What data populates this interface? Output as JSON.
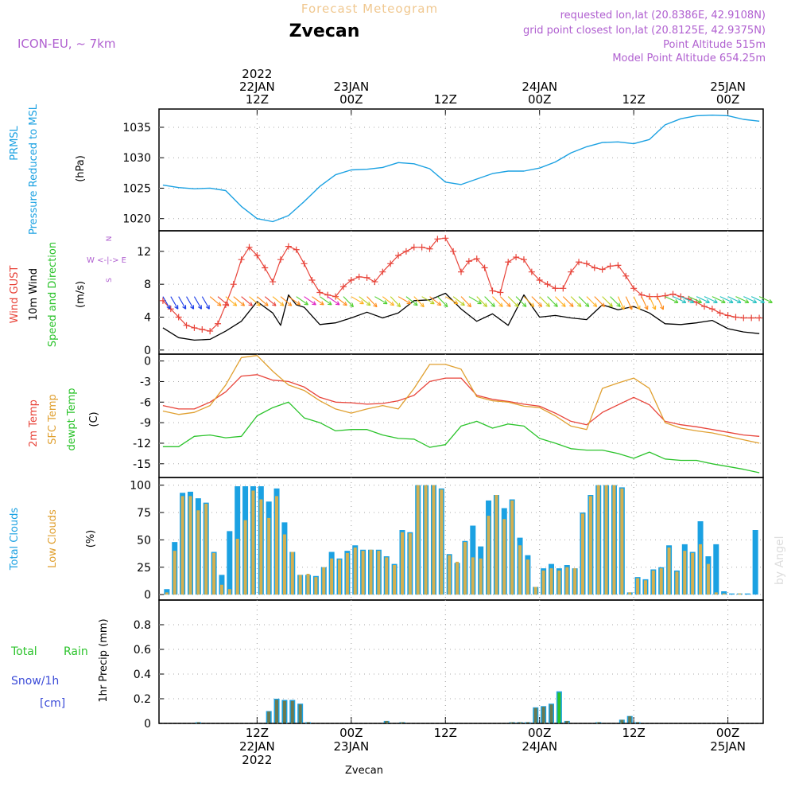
{
  "header": {
    "forecast_title": "Forecast Meteogram",
    "location": "Zvecan",
    "model": "ICON-EU, ~ 7km",
    "requested": "requested lon,lat (20.8386E, 42.9108N)",
    "gridpoint": "grid point closest lon,lat (20.8125E, 42.9375N)",
    "point_alt": "Point Altitude 515m",
    "model_alt": "Model Point Altitude 654.25m",
    "footer": "Zvecan",
    "watermark": "by Angel"
  },
  "colors": {
    "pressure": "#1ba1e2",
    "gust": "#e8443a",
    "wind": "#000000",
    "temp2m": "#e8443a",
    "sfc": "#e0a030",
    "dew": "#2bc32b",
    "total_cloud": "#1ba1e2",
    "low_cloud": "#d4b050",
    "rain": "#2bc32b",
    "snow": "#3b4bd8",
    "purple": "#b060d0"
  },
  "time_axis": {
    "top_labels": [
      {
        "hour": 12,
        "lines": [
          "2022",
          "22JAN",
          "12Z"
        ]
      },
      {
        "hour": 24,
        "lines": [
          "23JAN",
          "00Z"
        ]
      },
      {
        "hour": 36,
        "lines": [
          "12Z"
        ]
      },
      {
        "hour": 48,
        "lines": [
          "24JAN",
          "00Z"
        ]
      },
      {
        "hour": 60,
        "lines": [
          "12Z"
        ]
      },
      {
        "hour": 72,
        "lines": [
          "25JAN",
          "00Z"
        ]
      }
    ],
    "bottom_labels": [
      {
        "hour": 12,
        "lines": [
          "12Z",
          "22JAN",
          "2022"
        ]
      },
      {
        "hour": 24,
        "lines": [
          "00Z",
          "23JAN"
        ]
      },
      {
        "hour": 36,
        "lines": [
          "12Z"
        ]
      },
      {
        "hour": 48,
        "lines": [
          "00Z",
          "24JAN"
        ]
      },
      {
        "hour": 60,
        "lines": [
          "12Z"
        ]
      },
      {
        "hour": 72,
        "lines": [
          "00Z",
          "25JAN"
        ]
      }
    ]
  },
  "panels": {
    "pressure": {
      "labels": [
        "PRMSL",
        "Pressure Reduced to MSL"
      ],
      "unit": "(hPa)"
    },
    "wind": {
      "labels": [
        "Wind GUST",
        "10m Wind",
        "Speed and Direction"
      ],
      "unit": "(m/s)",
      "compass": [
        "N",
        "W <-|-> E",
        "S"
      ]
    },
    "temp": {
      "labels": [
        "2m Temp",
        "SFC Temp",
        "dewpt Temp"
      ],
      "unit": "(C)"
    },
    "clouds": {
      "labels": [
        "Total Clouds",
        "Low Clouds"
      ],
      "unit": "(%)"
    },
    "precip": {
      "labels": [
        "Total",
        "Rain",
        "Snow/1h",
        "[cm]"
      ],
      "unit": "1hr Precip (mm)"
    }
  },
  "chart_data": [
    {
      "type": "line",
      "panel": "pressure",
      "ylim": [
        1018,
        1038
      ],
      "yticks": [
        1020,
        1025,
        1030,
        1035
      ],
      "series": [
        {
          "name": "PRMSL",
          "x": [
            0,
            2,
            4,
            6,
            8,
            10,
            12,
            14,
            16,
            18,
            20,
            22,
            24,
            26,
            28,
            30,
            32,
            34,
            36,
            38,
            40,
            42,
            44,
            46,
            48,
            50,
            52,
            54,
            56,
            58,
            60,
            62,
            64,
            66,
            68,
            70,
            72,
            74,
            76
          ],
          "values": [
            1025.5,
            1025.1,
            1024.9,
            1025.0,
            1024.6,
            1022.0,
            1020.0,
            1019.5,
            1020.5,
            1022.8,
            1025.3,
            1027.2,
            1028.0,
            1028.1,
            1028.4,
            1029.2,
            1029.0,
            1028.2,
            1026.0,
            1025.6,
            1026.5,
            1027.4,
            1027.8,
            1027.8,
            1028.3,
            1029.3,
            1030.8,
            1031.8,
            1032.5,
            1032.6,
            1032.3,
            1033.0,
            1035.4,
            1036.4,
            1036.9,
            1037.0,
            1036.9,
            1036.3,
            1036.0
          ]
        }
      ]
    },
    {
      "type": "line",
      "panel": "wind",
      "ylim": [
        -0.5,
        14.5
      ],
      "yticks": [
        0,
        4,
        8,
        12
      ],
      "series": [
        {
          "name": "Wind GUST",
          "x": [
            0,
            1,
            2,
            3,
            4,
            5,
            6,
            7,
            8,
            9,
            10,
            11,
            12,
            13,
            14,
            15,
            16,
            17,
            18,
            19,
            20,
            21,
            22,
            23,
            24,
            25,
            26,
            27,
            28,
            29,
            30,
            31,
            32,
            33,
            34,
            35,
            36,
            37,
            38,
            39,
            40,
            41,
            42,
            43,
            44,
            45,
            46,
            47,
            48,
            49,
            50,
            51,
            52,
            53,
            54,
            55,
            56,
            57,
            58,
            59,
            60,
            61,
            62,
            63,
            64,
            65,
            66,
            67,
            68,
            69,
            70,
            71,
            72,
            73,
            74,
            75,
            76
          ],
          "values": [
            6.0,
            5.0,
            4.0,
            3.0,
            2.7,
            2.5,
            2.3,
            3.2,
            5.5,
            8.0,
            11.0,
            12.5,
            11.5,
            10.0,
            8.3,
            11.0,
            12.6,
            12.2,
            10.5,
            8.5,
            7.0,
            6.7,
            6.5,
            7.7,
            8.5,
            8.9,
            8.8,
            8.3,
            9.5,
            10.5,
            11.5,
            12.0,
            12.5,
            12.5,
            12.3,
            13.5,
            13.6,
            12.0,
            9.5,
            10.8,
            11.1,
            10.0,
            7.2,
            7.0,
            10.7,
            11.3,
            11.0,
            9.5,
            8.5,
            8.0,
            7.5,
            7.5,
            9.5,
            10.7,
            10.5,
            10.0,
            9.8,
            10.2,
            10.3,
            9.0,
            7.5,
            6.7,
            6.5,
            6.5,
            6.6,
            6.8,
            6.5,
            6.2,
            5.8,
            5.3,
            5.0,
            4.5,
            4.2,
            4.0,
            3.9,
            3.9,
            3.9
          ]
        },
        {
          "name": "10m Wind",
          "x": [
            0,
            2,
            4,
            6,
            8,
            10,
            12,
            14,
            15,
            16,
            17,
            18,
            20,
            22,
            24,
            26,
            28,
            30,
            32,
            34,
            36,
            38,
            40,
            42,
            44,
            46,
            48,
            50,
            52,
            54,
            56,
            58,
            60,
            62,
            64,
            66,
            68,
            70,
            72,
            74,
            76
          ],
          "values": [
            2.7,
            1.5,
            1.2,
            1.3,
            2.3,
            3.5,
            5.9,
            4.5,
            3.0,
            6.7,
            5.5,
            5.2,
            3.1,
            3.3,
            3.9,
            4.6,
            3.9,
            4.5,
            6.0,
            6.1,
            6.9,
            5.0,
            3.5,
            4.4,
            3.0,
            6.7,
            4.0,
            4.2,
            3.9,
            3.7,
            5.5,
            4.9,
            5.3,
            4.5,
            3.2,
            3.1,
            3.3,
            3.6,
            2.6,
            2.2,
            2.0
          ]
        }
      ]
    },
    {
      "type": "line",
      "panel": "temp",
      "ylim": [
        -17,
        1
      ]
    },
    {
      "type": "bar",
      "panel": "clouds",
      "ylim": [
        -5,
        107
      ],
      "yticks": [
        0,
        25,
        50,
        75,
        100
      ]
    },
    {
      "type": "bar",
      "panel": "precip",
      "ylim": [
        0,
        1.0
      ],
      "yticks": [
        0,
        0.2,
        0.4,
        0.6,
        0.8
      ]
    }
  ]
}
